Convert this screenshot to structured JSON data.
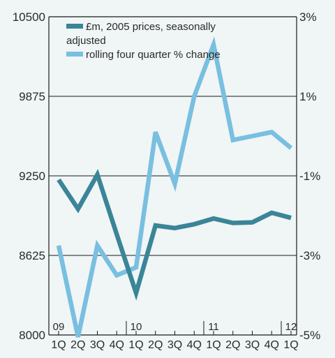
{
  "chart_data": {
    "type": "line",
    "title": "",
    "categories": [
      "1Q",
      "2Q",
      "3Q",
      "4Q",
      "1Q",
      "2Q",
      "3Q",
      "4Q",
      "1Q",
      "2Q",
      "3Q",
      "4Q",
      "1Q"
    ],
    "year_labels": [
      {
        "index": 0,
        "label": "09"
      },
      {
        "index": 4,
        "label": "10"
      },
      {
        "index": 8,
        "label": "11"
      },
      {
        "index": 12,
        "label": "12"
      }
    ],
    "left_axis": {
      "ylim": [
        8000,
        10500
      ],
      "ticks": [
        "10500",
        "9875",
        "9250",
        "8625",
        "8000"
      ],
      "tick_values": [
        10500,
        9875,
        9250,
        8625,
        8000
      ]
    },
    "right_axis": {
      "ylim": [
        -5,
        3
      ],
      "ticks": [
        "3%",
        "1%",
        "-1%",
        "-3%",
        "-5%"
      ],
      "tick_values": [
        3,
        1,
        -1,
        -3,
        -5
      ]
    },
    "series": [
      {
        "name_line1": "£m, 2005 prices, seasonally",
        "name_line2": "adjusted",
        "axis": "left",
        "color": "#3a8597",
        "values": [
          9220,
          8990,
          9260,
          8790,
          8330,
          8860,
          8840,
          8870,
          8915,
          8880,
          8885,
          8960,
          8920
        ]
      },
      {
        "name": "rolling four quarter % change",
        "axis": "right",
        "color": "#79bfe0",
        "values": [
          -2.75,
          -5.05,
          -2.75,
          -3.5,
          -3.3,
          0.1,
          -1.2,
          1.0,
          2.3,
          -0.1,
          0.0,
          0.1,
          -0.3
        ]
      }
    ],
    "grid": true,
    "legend_position": "top-left"
  }
}
